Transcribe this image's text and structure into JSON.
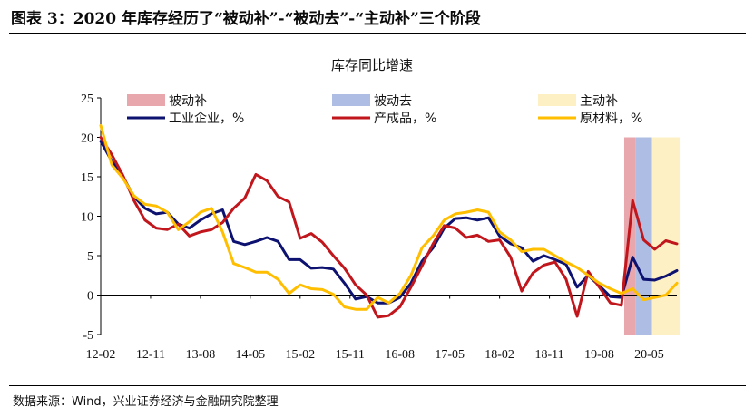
{
  "figure": {
    "title": "图表 3：2020 年库存经历了“被动补”-“被动去”-“主动补”三个阶段",
    "source": "数据来源：Wind，兴业证券经济与金融研究院整理"
  },
  "colors": {
    "industrial": "#0d1270",
    "product": "#c0161c",
    "raw": "#ffbe00",
    "passive_fill": "#e8a7ad",
    "passive_destock": "#aebde4",
    "active_fill": "#fdf0c4"
  },
  "chart_data": {
    "type": "line",
    "title": "库存同比增速",
    "xlabel": "",
    "ylabel": "",
    "ylim": [
      -5,
      25
    ],
    "yticks": [
      -5,
      0,
      5,
      10,
      15,
      20,
      25
    ],
    "xtick_labels": [
      "12-02",
      "12-11",
      "13-08",
      "14-05",
      "15-02",
      "15-11",
      "16-08",
      "17-05",
      "18-02",
      "18-11",
      "19-08",
      "20-05"
    ],
    "legend_position": "top",
    "phases": [
      {
        "name": "被动补",
        "start": "2020-01",
        "end": "2020-02",
        "color_key": "passive_fill"
      },
      {
        "name": "被动去",
        "start": "2020-03",
        "end": "2020-05",
        "color_key": "passive_destock"
      },
      {
        "name": "主动补",
        "start": "2020-06",
        "end": "2020-10",
        "color_key": "active_fill"
      }
    ],
    "series": [
      {
        "name": "工业企业，%",
        "color_key": "industrial",
        "values": [
          {
            "x": "2012-02",
            "y": 19.5
          },
          {
            "x": "2012-04",
            "y": 17.0
          },
          {
            "x": "2012-06",
            "y": 15.0
          },
          {
            "x": "2012-08",
            "y": 12.5
          },
          {
            "x": "2012-10",
            "y": 11.0
          },
          {
            "x": "2012-12",
            "y": 10.3
          },
          {
            "x": "2013-02",
            "y": 10.5
          },
          {
            "x": "2013-04",
            "y": 9.0
          },
          {
            "x": "2013-06",
            "y": 8.5
          },
          {
            "x": "2013-08",
            "y": 9.5
          },
          {
            "x": "2013-10",
            "y": 10.3
          },
          {
            "x": "2013-12",
            "y": 10.8
          },
          {
            "x": "2014-02",
            "y": 6.8
          },
          {
            "x": "2014-04",
            "y": 6.4
          },
          {
            "x": "2014-06",
            "y": 6.8
          },
          {
            "x": "2014-08",
            "y": 7.3
          },
          {
            "x": "2014-10",
            "y": 6.8
          },
          {
            "x": "2014-12",
            "y": 4.5
          },
          {
            "x": "2015-02",
            "y": 4.5
          },
          {
            "x": "2015-04",
            "y": 3.4
          },
          {
            "x": "2015-06",
            "y": 3.5
          },
          {
            "x": "2015-08",
            "y": 3.3
          },
          {
            "x": "2015-10",
            "y": 1.5
          },
          {
            "x": "2015-12",
            "y": -0.5
          },
          {
            "x": "2016-02",
            "y": -0.2
          },
          {
            "x": "2016-04",
            "y": -1.0
          },
          {
            "x": "2016-06",
            "y": -1.0
          },
          {
            "x": "2016-08",
            "y": -0.3
          },
          {
            "x": "2016-10",
            "y": 1.5
          },
          {
            "x": "2016-12",
            "y": 4.3
          },
          {
            "x": "2017-02",
            "y": 6.0
          },
          {
            "x": "2017-04",
            "y": 8.5
          },
          {
            "x": "2017-06",
            "y": 9.7
          },
          {
            "x": "2017-08",
            "y": 9.8
          },
          {
            "x": "2017-10",
            "y": 9.5
          },
          {
            "x": "2017-12",
            "y": 9.8
          },
          {
            "x": "2018-02",
            "y": 7.5
          },
          {
            "x": "2018-04",
            "y": 6.5
          },
          {
            "x": "2018-06",
            "y": 6.0
          },
          {
            "x": "2018-08",
            "y": 4.3
          },
          {
            "x": "2018-10",
            "y": 5.0
          },
          {
            "x": "2018-12",
            "y": 4.5
          },
          {
            "x": "2019-02",
            "y": 3.9
          },
          {
            "x": "2019-04",
            "y": 1.0
          },
          {
            "x": "2019-06",
            "y": 2.5
          },
          {
            "x": "2019-08",
            "y": 1.2
          },
          {
            "x": "2019-10",
            "y": -0.2
          },
          {
            "x": "2019-12",
            "y": -0.3
          },
          {
            "x": "2020-02",
            "y": 4.8
          },
          {
            "x": "2020-04",
            "y": 2.0
          },
          {
            "x": "2020-06",
            "y": 1.9
          },
          {
            "x": "2020-08",
            "y": 2.4
          },
          {
            "x": "2020-10",
            "y": 3.1
          }
        ]
      },
      {
        "name": "产成品，%",
        "color_key": "product",
        "values": [
          {
            "x": "2012-02",
            "y": 20.0
          },
          {
            "x": "2012-04",
            "y": 17.8
          },
          {
            "x": "2012-06",
            "y": 15.2
          },
          {
            "x": "2012-08",
            "y": 12.0
          },
          {
            "x": "2012-10",
            "y": 9.5
          },
          {
            "x": "2012-12",
            "y": 8.5
          },
          {
            "x": "2013-02",
            "y": 8.3
          },
          {
            "x": "2013-04",
            "y": 9.0
          },
          {
            "x": "2013-06",
            "y": 7.5
          },
          {
            "x": "2013-08",
            "y": 8.0
          },
          {
            "x": "2013-10",
            "y": 8.3
          },
          {
            "x": "2013-12",
            "y": 9.2
          },
          {
            "x": "2014-02",
            "y": 11.0
          },
          {
            "x": "2014-04",
            "y": 12.3
          },
          {
            "x": "2014-06",
            "y": 15.3
          },
          {
            "x": "2014-08",
            "y": 14.5
          },
          {
            "x": "2014-10",
            "y": 12.5
          },
          {
            "x": "2014-12",
            "y": 11.8
          },
          {
            "x": "2015-02",
            "y": 7.2
          },
          {
            "x": "2015-04",
            "y": 7.8
          },
          {
            "x": "2015-06",
            "y": 6.7
          },
          {
            "x": "2015-08",
            "y": 5.0
          },
          {
            "x": "2015-10",
            "y": 3.4
          },
          {
            "x": "2015-12",
            "y": 1.3
          },
          {
            "x": "2016-02",
            "y": 0.0
          },
          {
            "x": "2016-04",
            "y": -2.8
          },
          {
            "x": "2016-06",
            "y": -2.6
          },
          {
            "x": "2016-08",
            "y": -1.5
          },
          {
            "x": "2016-10",
            "y": 1.0
          },
          {
            "x": "2016-12",
            "y": 3.7
          },
          {
            "x": "2017-02",
            "y": 6.5
          },
          {
            "x": "2017-04",
            "y": 8.8
          },
          {
            "x": "2017-06",
            "y": 8.5
          },
          {
            "x": "2017-08",
            "y": 7.3
          },
          {
            "x": "2017-10",
            "y": 7.6
          },
          {
            "x": "2017-12",
            "y": 6.8
          },
          {
            "x": "2018-02",
            "y": 7.0
          },
          {
            "x": "2018-04",
            "y": 4.8
          },
          {
            "x": "2018-06",
            "y": 0.5
          },
          {
            "x": "2018-08",
            "y": 2.8
          },
          {
            "x": "2018-10",
            "y": 3.8
          },
          {
            "x": "2018-12",
            "y": 4.2
          },
          {
            "x": "2019-02",
            "y": 2.0
          },
          {
            "x": "2019-04",
            "y": -2.7
          },
          {
            "x": "2019-06",
            "y": 3.0
          },
          {
            "x": "2019-08",
            "y": 1.0
          },
          {
            "x": "2019-10",
            "y": -1.0
          },
          {
            "x": "2019-12",
            "y": -1.3
          },
          {
            "x": "2020-02",
            "y": 12.0
          },
          {
            "x": "2020-04",
            "y": 7.0
          },
          {
            "x": "2020-06",
            "y": 5.8
          },
          {
            "x": "2020-08",
            "y": 6.9
          },
          {
            "x": "2020-10",
            "y": 6.5
          }
        ]
      },
      {
        "name": "原材料，%",
        "color_key": "raw",
        "values": [
          {
            "x": "2012-02",
            "y": 21.5
          },
          {
            "x": "2012-04",
            "y": 16.5
          },
          {
            "x": "2012-06",
            "y": 14.8
          },
          {
            "x": "2012-08",
            "y": 12.6
          },
          {
            "x": "2012-10",
            "y": 11.5
          },
          {
            "x": "2012-12",
            "y": 11.3
          },
          {
            "x": "2013-02",
            "y": 10.5
          },
          {
            "x": "2013-04",
            "y": 8.3
          },
          {
            "x": "2013-06",
            "y": 9.3
          },
          {
            "x": "2013-08",
            "y": 10.5
          },
          {
            "x": "2013-10",
            "y": 11.0
          },
          {
            "x": "2013-12",
            "y": 8.0
          },
          {
            "x": "2014-02",
            "y": 4.0
          },
          {
            "x": "2014-04",
            "y": 3.5
          },
          {
            "x": "2014-06",
            "y": 2.9
          },
          {
            "x": "2014-08",
            "y": 2.9
          },
          {
            "x": "2014-10",
            "y": 2.0
          },
          {
            "x": "2014-12",
            "y": 0.2
          },
          {
            "x": "2015-02",
            "y": 1.3
          },
          {
            "x": "2015-04",
            "y": 0.8
          },
          {
            "x": "2015-06",
            "y": 0.7
          },
          {
            "x": "2015-08",
            "y": 0.1
          },
          {
            "x": "2015-10",
            "y": -1.5
          },
          {
            "x": "2015-12",
            "y": -1.8
          },
          {
            "x": "2016-02",
            "y": -1.8
          },
          {
            "x": "2016-04",
            "y": -0.3
          },
          {
            "x": "2016-06",
            "y": -1.0
          },
          {
            "x": "2016-08",
            "y": 0.2
          },
          {
            "x": "2016-10",
            "y": 2.5
          },
          {
            "x": "2016-12",
            "y": 6.0
          },
          {
            "x": "2017-02",
            "y": 7.5
          },
          {
            "x": "2017-04",
            "y": 9.5
          },
          {
            "x": "2017-06",
            "y": 10.3
          },
          {
            "x": "2017-08",
            "y": 10.5
          },
          {
            "x": "2017-10",
            "y": 10.8
          },
          {
            "x": "2017-12",
            "y": 10.5
          },
          {
            "x": "2018-02",
            "y": 8.0
          },
          {
            "x": "2018-04",
            "y": 7.0
          },
          {
            "x": "2018-06",
            "y": 5.5
          },
          {
            "x": "2018-08",
            "y": 5.8
          },
          {
            "x": "2018-10",
            "y": 5.8
          },
          {
            "x": "2018-12",
            "y": 5.0
          },
          {
            "x": "2019-02",
            "y": 4.2
          },
          {
            "x": "2019-04",
            "y": 3.5
          },
          {
            "x": "2019-06",
            "y": 2.5
          },
          {
            "x": "2019-08",
            "y": 1.5
          },
          {
            "x": "2019-10",
            "y": 0.8
          },
          {
            "x": "2019-12",
            "y": 0.2
          },
          {
            "x": "2020-02",
            "y": 0.8
          },
          {
            "x": "2020-04",
            "y": -0.6
          },
          {
            "x": "2020-06",
            "y": -0.3
          },
          {
            "x": "2020-08",
            "y": 0.0
          },
          {
            "x": "2020-10",
            "y": 1.5
          }
        ]
      }
    ]
  }
}
